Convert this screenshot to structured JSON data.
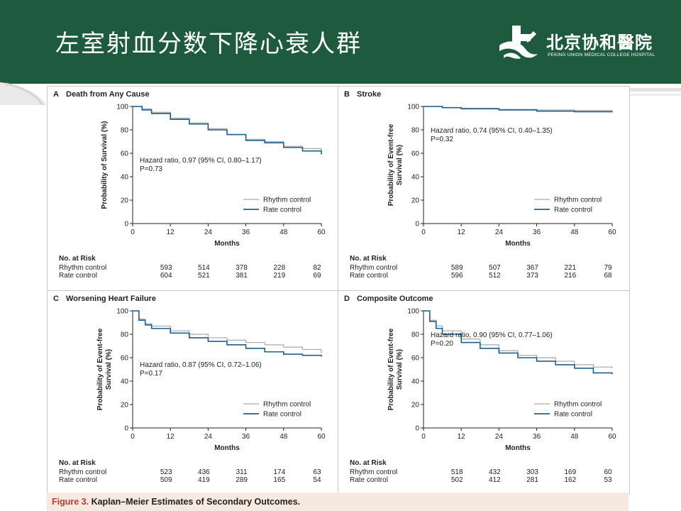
{
  "slide": {
    "title": "左室射血分数下降心衰人群",
    "logo_cn": "北京协和醫院",
    "logo_en": "PEKING UNION MEDICAL COLLEGE HOSPITAL",
    "colors": {
      "header": "#1e5b3e",
      "logo": "#ffffff"
    }
  },
  "figure": {
    "caption_label": "Figure 3.",
    "caption_text": "Kaplan–Meier Estimates of Secondary Outcomes."
  },
  "chart_data": [
    {
      "type": "line",
      "panel_letter": "A",
      "title": "Death from Any Cause",
      "ylabel_lines": [
        "Probability of Survival (%)"
      ],
      "xlabel": "Months",
      "xlim": [
        0,
        60
      ],
      "ylim": [
        0,
        100
      ],
      "xticks": [
        0,
        12,
        24,
        36,
        48,
        60
      ],
      "yticks": [
        0,
        20,
        40,
        60,
        80,
        100
      ],
      "annotation": [
        "Hazard ratio, 0.97 (95% CI, 0.80–1.17)",
        "P=0.73"
      ],
      "legend_position": "bottom-right",
      "series": [
        {
          "name": "Rhythm control",
          "color": "#a8a8a8",
          "x": [
            0,
            3,
            6,
            12,
            18,
            24,
            30,
            36,
            42,
            48,
            54,
            60
          ],
          "y": [
            100,
            98,
            95,
            90,
            86,
            81,
            76,
            72,
            70,
            66,
            64,
            62
          ]
        },
        {
          "name": "Rate control",
          "color": "#1f5f8b",
          "x": [
            0,
            3,
            6,
            12,
            18,
            24,
            30,
            36,
            42,
            48,
            54,
            60
          ],
          "y": [
            100,
            97,
            94,
            89,
            85,
            80,
            76,
            71,
            69,
            65,
            62,
            59
          ]
        }
      ],
      "at_risk": {
        "header": "No. at Risk",
        "rows": [
          {
            "label": "Rhythm control",
            "values": [
              "593",
              "514",
              "378",
              "228",
              "82"
            ]
          },
          {
            "label": "Rate control",
            "values": [
              "604",
              "521",
              "381",
              "219",
              "69"
            ]
          }
        ]
      }
    },
    {
      "type": "line",
      "panel_letter": "B",
      "title": "Stroke",
      "ylabel_lines": [
        "Probability of Event-free",
        "Survival (%)"
      ],
      "xlabel": "Months",
      "xlim": [
        0,
        60
      ],
      "ylim": [
        0,
        100
      ],
      "xticks": [
        0,
        12,
        24,
        36,
        48,
        60
      ],
      "yticks": [
        0,
        20,
        40,
        60,
        80,
        100
      ],
      "annotation": [
        "Hazard ratio, 0.74 (95% CI, 0.40–1.35)",
        "P=0.32"
      ],
      "legend_position": "bottom-right",
      "series": [
        {
          "name": "Rhythm control",
          "color": "#a8a8a8",
          "x": [
            0,
            6,
            12,
            24,
            36,
            48,
            60
          ],
          "y": [
            100,
            99,
            98.5,
            97.5,
            97,
            96.5,
            96
          ]
        },
        {
          "name": "Rate control",
          "color": "#1f5f8b",
          "x": [
            0,
            6,
            12,
            24,
            36,
            48,
            60
          ],
          "y": [
            100,
            99,
            98,
            97,
            96,
            95.5,
            95
          ]
        }
      ],
      "at_risk": {
        "header": "No. at Risk",
        "rows": [
          {
            "label": "Rhythm control",
            "values": [
              "589",
              "507",
              "367",
              "221",
              "79"
            ]
          },
          {
            "label": "Rate control",
            "values": [
              "596",
              "512",
              "373",
              "216",
              "68"
            ]
          }
        ]
      }
    },
    {
      "type": "line",
      "panel_letter": "C",
      "title": "Worsening Heart Failure",
      "ylabel_lines": [
        "Probability of Event-free",
        "Survival (%)"
      ],
      "xlabel": "Months",
      "xlim": [
        0,
        60
      ],
      "ylim": [
        0,
        100
      ],
      "xticks": [
        0,
        12,
        24,
        36,
        48,
        60
      ],
      "yticks": [
        0,
        20,
        40,
        60,
        80,
        100
      ],
      "annotation": [
        "Hazard ratio, 0.87 (95% CI, 0.72–1.06)",
        "P=0.17"
      ],
      "legend_position": "bottom-right",
      "series": [
        {
          "name": "Rhythm control",
          "color": "#a8a8a8",
          "x": [
            0,
            2,
            4,
            6,
            12,
            18,
            24,
            30,
            36,
            42,
            48,
            54,
            60
          ],
          "y": [
            100,
            93,
            89,
            87,
            83,
            80,
            77,
            75,
            73,
            71,
            69,
            67,
            64
          ]
        },
        {
          "name": "Rate control",
          "color": "#1f5f8b",
          "x": [
            0,
            2,
            4,
            6,
            12,
            18,
            24,
            30,
            36,
            42,
            48,
            54,
            60
          ],
          "y": [
            100,
            92,
            88,
            85,
            81,
            77,
            74,
            71,
            68,
            65,
            63,
            62,
            61
          ]
        }
      ],
      "at_risk": {
        "header": "No. at Risk",
        "rows": [
          {
            "label": "Rhythm control",
            "values": [
              "523",
              "436",
              "311",
              "174",
              "63"
            ]
          },
          {
            "label": "Rate control",
            "values": [
              "509",
              "419",
              "289",
              "165",
              "54"
            ]
          }
        ]
      }
    },
    {
      "type": "line",
      "panel_letter": "D",
      "title": "Composite Outcome",
      "ylabel_lines": [
        "Probability of Event-free",
        "Survival (%)"
      ],
      "xlabel": "Months",
      "xlim": [
        0,
        60
      ],
      "ylim": [
        0,
        100
      ],
      "xticks": [
        0,
        12,
        24,
        36,
        48,
        60
      ],
      "yticks": [
        0,
        20,
        40,
        60,
        80,
        100
      ],
      "annotation": [
        "Hazard ratio, 0.90 (95% CI, 0.77–1.06)",
        "P=0.20"
      ],
      "legend_position": "bottom-right",
      "series": [
        {
          "name": "Rhythm control",
          "color": "#a8a8a8",
          "x": [
            0,
            2,
            4,
            6,
            12,
            18,
            24,
            30,
            36,
            42,
            48,
            54,
            60
          ],
          "y": [
            100,
            92,
            87,
            83,
            76,
            71,
            66,
            62,
            60,
            57,
            54,
            52,
            51
          ]
        },
        {
          "name": "Rate control",
          "color": "#1f5f8b",
          "x": [
            0,
            2,
            4,
            6,
            12,
            18,
            24,
            30,
            36,
            42,
            48,
            54,
            60
          ],
          "y": [
            100,
            91,
            85,
            80,
            73,
            68,
            64,
            60,
            57,
            54,
            51,
            47,
            46
          ]
        }
      ],
      "at_risk": {
        "header": "No. at Risk",
        "rows": [
          {
            "label": "Rhythm control",
            "values": [
              "518",
              "432",
              "303",
              "169",
              "60"
            ]
          },
          {
            "label": "Rate control",
            "values": [
              "502",
              "412",
              "281",
              "162",
              "53"
            ]
          }
        ]
      }
    }
  ]
}
